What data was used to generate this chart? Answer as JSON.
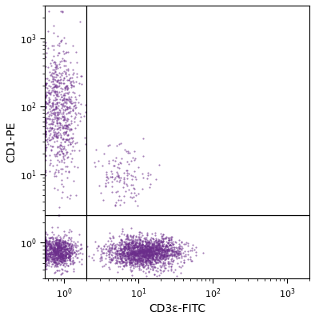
{
  "title": "",
  "xlabel": "CD3ε-FITC",
  "ylabel": "CD1-PE",
  "xlim": [
    0.55,
    2000
  ],
  "ylim": [
    0.3,
    3000
  ],
  "gate_x": 2.0,
  "gate_y": 2.5,
  "dot_color": "#6B2D8B",
  "dot_alpha": 0.6,
  "dot_size": 2.5,
  "background_color": "#ffffff",
  "populations": {
    "Q2_top_left": {
      "n": 700,
      "x_center": 0.85,
      "y_center": 80,
      "x_spread": 0.3,
      "y_spread": 1.1
    },
    "Q3_bottom_left": {
      "n": 900,
      "x_center": 0.82,
      "y_center": 0.72,
      "x_spread": 0.28,
      "y_spread": 0.25
    },
    "Q4_bottom_right": {
      "n": 1800,
      "x_center": 12.0,
      "y_center": 0.72,
      "x_spread": 0.55,
      "y_spread": 0.25
    },
    "scatter_mid_right": {
      "n": 130,
      "x_center": 6.0,
      "y_center": 10,
      "x_spread": 0.45,
      "y_spread": 0.55
    }
  }
}
